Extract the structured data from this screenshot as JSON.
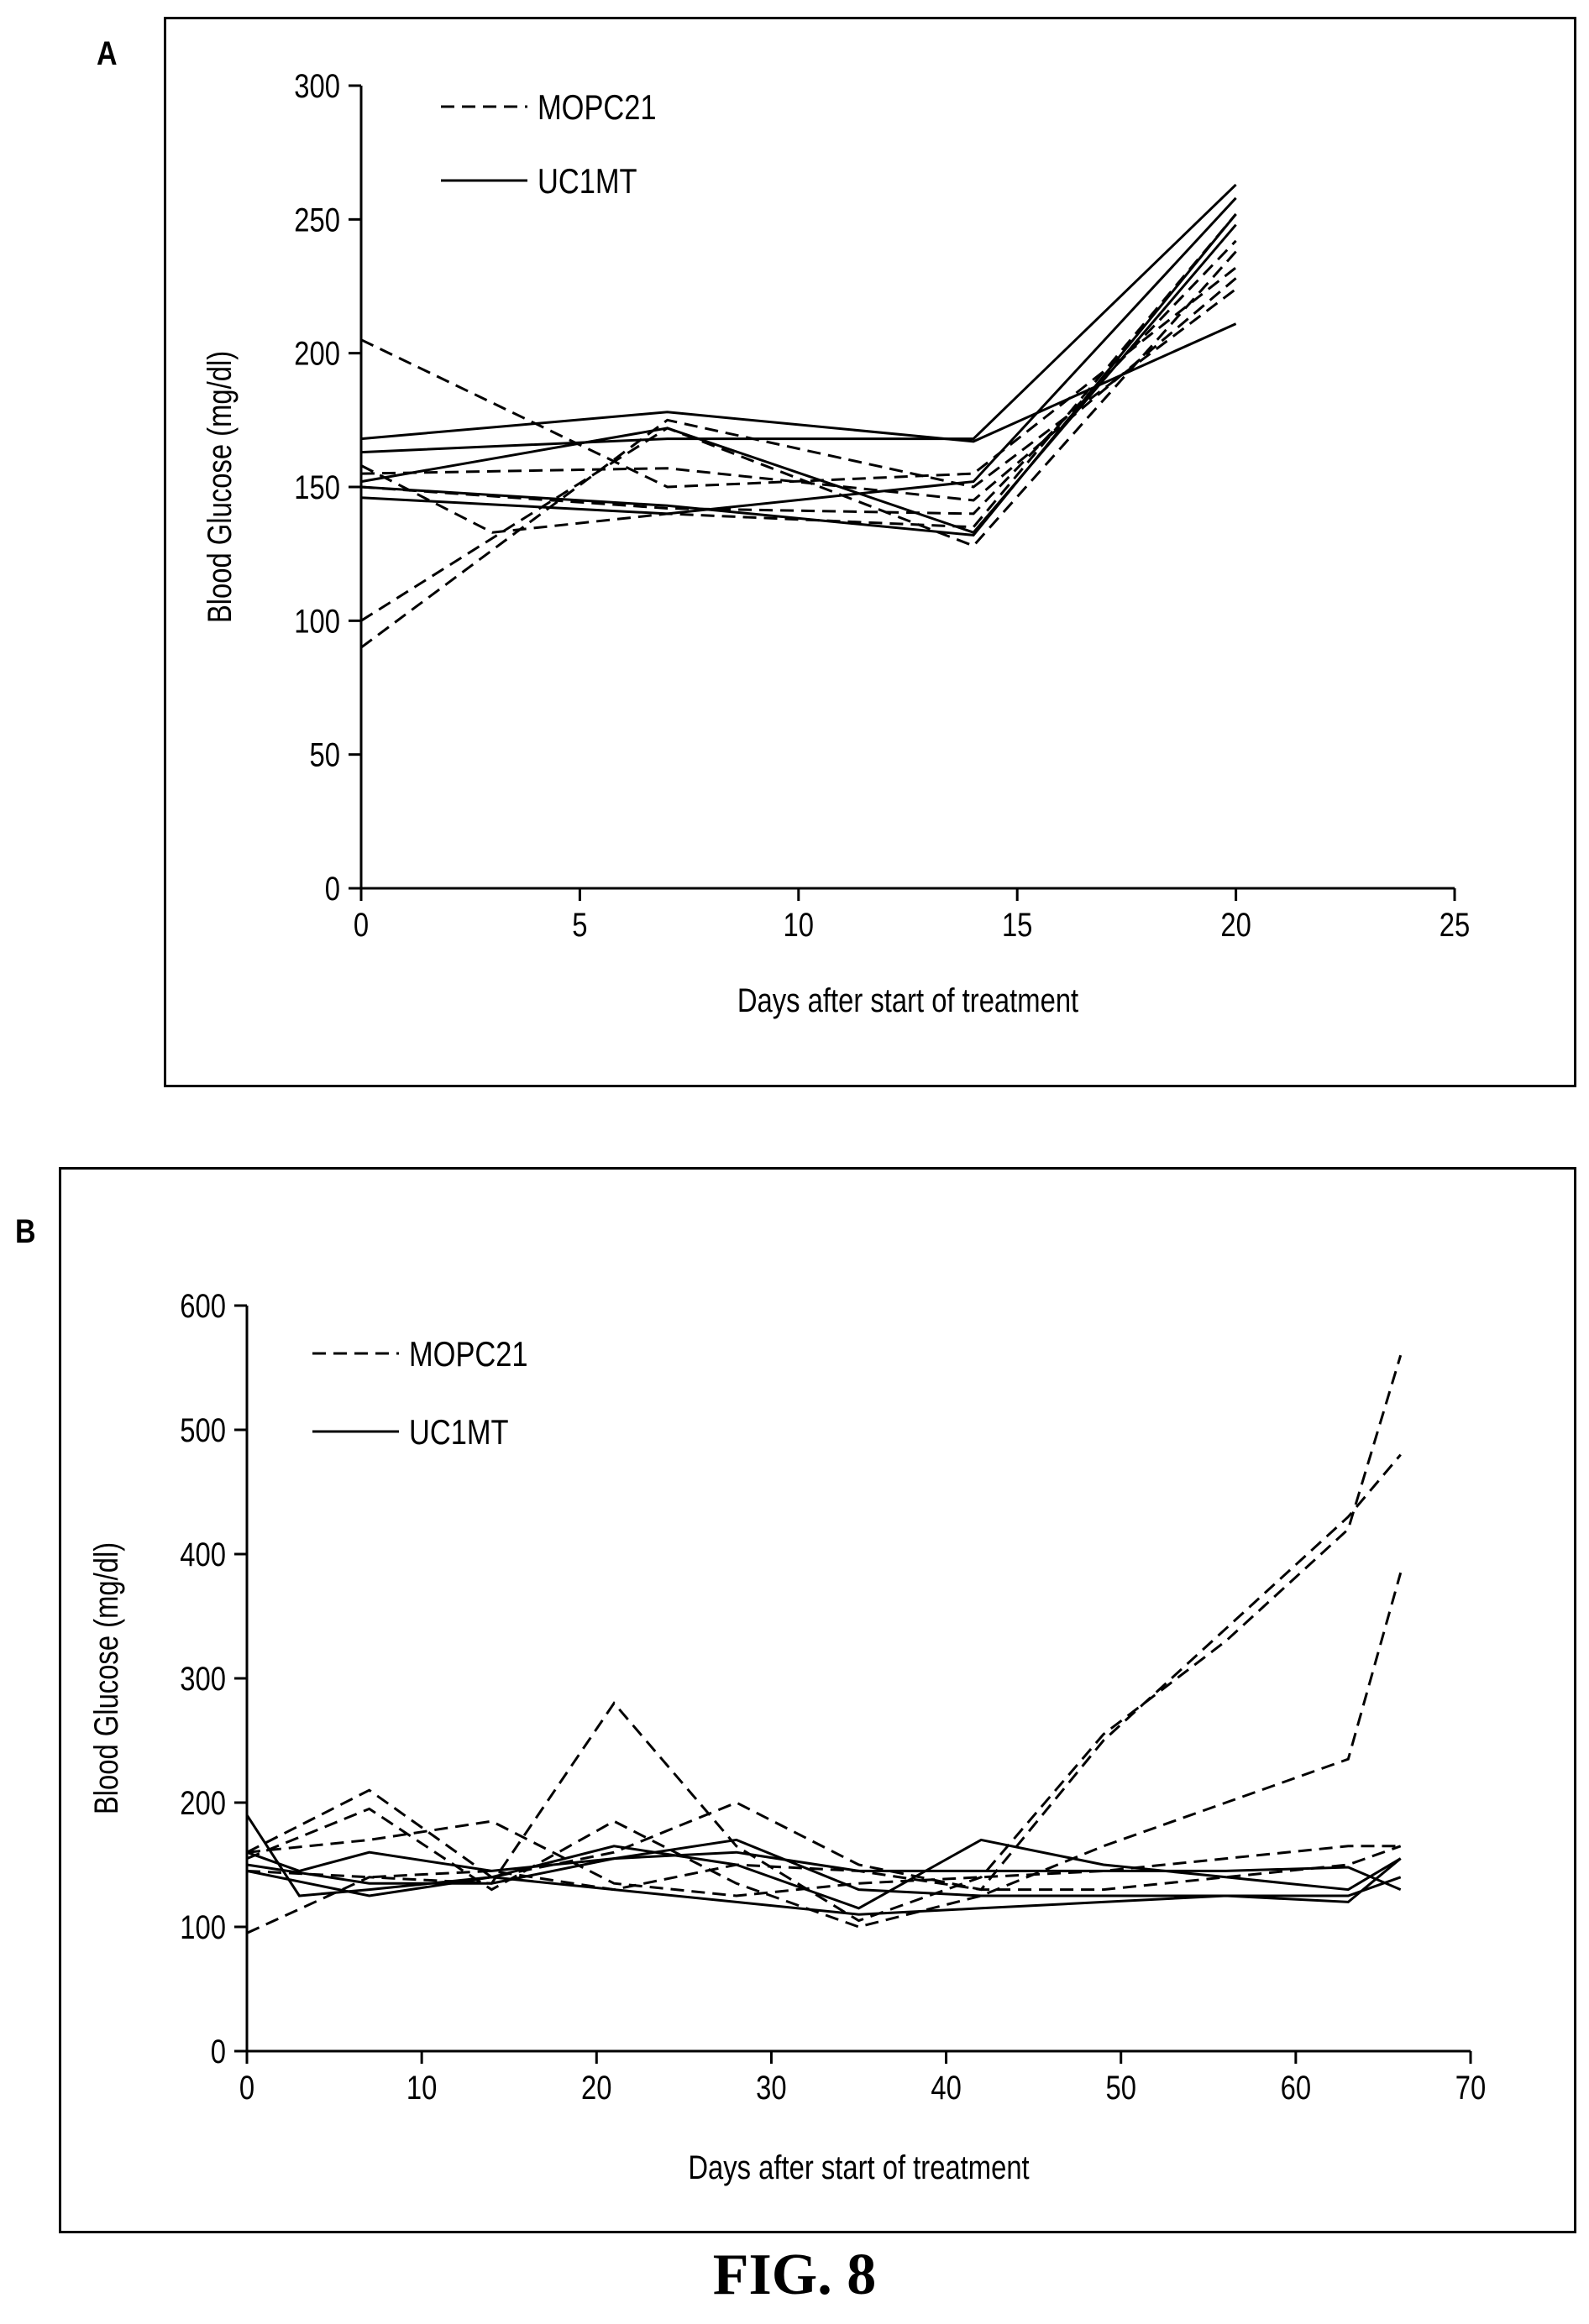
{
  "figure_caption": "FIG. 8",
  "legend": {
    "series_dashed": "MOPC21",
    "series_solid": "UC1MT"
  },
  "chart_data": [
    {
      "panel": "A",
      "type": "line",
      "xlabel": "Days after start of treatment",
      "ylabel": "Blood Glucose (mg/dl)",
      "xlim": [
        0,
        25
      ],
      "ylim": [
        0,
        300
      ],
      "xticks": [
        0,
        5,
        10,
        15,
        20,
        25
      ],
      "yticks": [
        0,
        50,
        100,
        150,
        200,
        250,
        300
      ],
      "legend_position": "top-left",
      "series": [
        {
          "group": "MOPC21",
          "x": [
            0,
            7,
            14,
            20
          ],
          "y": [
            205,
            150,
            155,
            232
          ]
        },
        {
          "group": "MOPC21",
          "x": [
            0,
            7,
            14,
            20
          ],
          "y": [
            100,
            172,
            128,
            238
          ]
        },
        {
          "group": "MOPC21",
          "x": [
            0,
            7,
            14,
            20
          ],
          "y": [
            90,
            175,
            150,
            224
          ]
        },
        {
          "group": "MOPC21",
          "x": [
            0,
            3,
            7,
            14,
            20
          ],
          "y": [
            158,
            133,
            140,
            135,
            252
          ]
        },
        {
          "group": "MOPC21",
          "x": [
            0,
            7,
            14,
            20
          ],
          "y": [
            155,
            157,
            145,
            228
          ]
        },
        {
          "group": "MOPC21",
          "x": [
            0,
            7,
            14,
            20
          ],
          "y": [
            150,
            142,
            140,
            242
          ]
        },
        {
          "group": "UC1MT",
          "x": [
            0,
            7,
            14,
            20
          ],
          "y": [
            168,
            178,
            167,
            211
          ]
        },
        {
          "group": "UC1MT",
          "x": [
            0,
            7,
            14,
            20
          ],
          "y": [
            163,
            168,
            168,
            263
          ]
        },
        {
          "group": "UC1MT",
          "x": [
            0,
            7,
            14,
            20
          ],
          "y": [
            152,
            172,
            133,
            248
          ]
        },
        {
          "group": "UC1MT",
          "x": [
            0,
            7,
            14,
            20
          ],
          "y": [
            146,
            140,
            152,
            258
          ]
        },
        {
          "group": "UC1MT",
          "x": [
            0,
            7,
            14,
            20
          ],
          "y": [
            150,
            143,
            132,
            252
          ]
        }
      ]
    },
    {
      "panel": "B",
      "type": "line",
      "xlabel": "Days after start of treatment",
      "ylabel": "Blood Glucose (mg/dl)",
      "xlim": [
        0,
        70
      ],
      "ylim": [
        0,
        600
      ],
      "xticks": [
        0,
        10,
        20,
        30,
        40,
        50,
        60,
        70
      ],
      "yticks": [
        0,
        100,
        200,
        300,
        400,
        500,
        600
      ],
      "legend_position": "top-left",
      "series": [
        {
          "group": "MOPC21",
          "x": [
            0,
            7,
            14,
            21,
            28,
            35,
            42,
            49,
            56,
            63,
            66
          ],
          "y": [
            95,
            140,
            135,
            280,
            165,
            105,
            140,
            255,
            330,
            420,
            560
          ]
        },
        {
          "group": "MOPC21",
          "x": [
            0,
            7,
            14,
            21,
            28,
            35,
            42,
            49,
            56,
            63,
            66
          ],
          "y": [
            160,
            210,
            140,
            160,
            200,
            150,
            130,
            250,
            340,
            430,
            480
          ]
        },
        {
          "group": "MOPC21",
          "x": [
            0,
            7,
            14,
            21,
            28,
            35,
            42,
            49,
            56,
            63,
            66
          ],
          "y": [
            155,
            195,
            130,
            185,
            135,
            100,
            125,
            165,
            200,
            235,
            385
          ]
        },
        {
          "group": "MOPC21",
          "x": [
            0,
            7,
            14,
            21,
            28,
            35,
            42,
            49,
            56,
            63,
            66
          ],
          "y": [
            160,
            170,
            185,
            135,
            125,
            135,
            140,
            145,
            155,
            165,
            165
          ]
        },
        {
          "group": "MOPC21",
          "x": [
            0,
            7,
            14,
            21,
            28,
            35,
            42,
            49,
            56,
            63,
            66
          ],
          "y": [
            145,
            140,
            145,
            130,
            150,
            145,
            130,
            130,
            140,
            150,
            165
          ]
        },
        {
          "group": "UC1MT",
          "x": [
            0,
            3,
            7,
            14,
            21,
            28,
            35,
            42,
            49,
            56,
            63,
            66
          ],
          "y": [
            190,
            125,
            130,
            140,
            165,
            150,
            115,
            170,
            150,
            140,
            130,
            155
          ]
        },
        {
          "group": "UC1MT",
          "x": [
            0,
            3,
            7,
            14,
            21,
            28,
            35,
            42,
            49,
            56,
            63,
            66
          ],
          "y": [
            160,
            145,
            160,
            145,
            155,
            170,
            130,
            125,
            125,
            125,
            125,
            140
          ]
        },
        {
          "group": "UC1MT",
          "x": [
            0,
            7,
            14,
            21,
            28,
            35,
            42,
            49,
            56,
            63,
            66
          ],
          "y": [
            150,
            135,
            135,
            155,
            160,
            145,
            145,
            145,
            145,
            148,
            130
          ]
        },
        {
          "group": "UC1MT",
          "x": [
            0,
            7,
            14,
            21,
            28,
            35,
            42,
            49,
            56,
            63,
            66
          ],
          "y": [
            145,
            125,
            140,
            130,
            120,
            110,
            115,
            120,
            125,
            120,
            155
          ]
        }
      ]
    }
  ]
}
